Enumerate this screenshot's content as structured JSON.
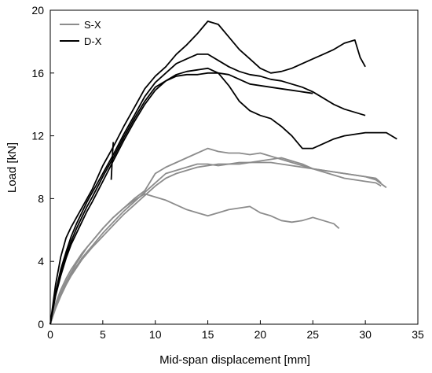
{
  "chart_data": {
    "type": "line",
    "title": "",
    "xlabel": "Mid-span displacement [mm]",
    "ylabel": "Load [kN]",
    "xlim": [
      0,
      35
    ],
    "ylim": [
      0,
      20
    ],
    "xticks": [
      0,
      5,
      10,
      15,
      20,
      25,
      30,
      35
    ],
    "yticks": [
      0,
      4,
      8,
      12,
      16,
      20
    ],
    "grid": false,
    "legend_position": "top-left",
    "legend": [
      {
        "label": "S-X",
        "color": "#8c8c8c"
      },
      {
        "label": "D-X",
        "color": "#000000"
      }
    ],
    "series": [
      {
        "group": "S-X",
        "color": "#8c8c8c",
        "x": [
          0,
          0.5,
          1,
          1.5,
          2,
          2.5,
          3,
          3.5,
          4,
          5,
          6,
          7,
          8,
          9,
          10,
          11,
          12,
          13,
          14,
          15,
          16,
          17,
          18,
          19,
          20,
          21,
          22,
          23,
          24,
          25,
          26,
          27,
          28,
          29,
          30,
          31,
          31.5
        ],
        "y": [
          0,
          1.2,
          2.0,
          2.7,
          3.3,
          3.9,
          4.4,
          4.9,
          5.3,
          6.1,
          6.8,
          7.4,
          8.0,
          8.5,
          9.6,
          10.0,
          10.3,
          10.6,
          10.9,
          11.2,
          11.0,
          10.9,
          10.9,
          10.8,
          10.9,
          10.7,
          10.5,
          10.3,
          10.1,
          9.9,
          9.8,
          9.7,
          9.6,
          9.5,
          9.4,
          9.3,
          9.0
        ]
      },
      {
        "group": "S-X",
        "color": "#8c8c8c",
        "x": [
          0,
          0.5,
          1,
          1.5,
          2,
          2.5,
          3,
          3.5,
          4,
          5,
          6,
          7,
          8,
          9,
          10,
          11,
          12,
          13,
          14,
          15,
          16,
          17,
          18,
          19,
          20,
          21,
          22,
          23,
          24,
          25,
          26,
          27,
          28,
          29,
          30,
          31,
          31.5
        ],
        "y": [
          0,
          1.1,
          1.9,
          2.6,
          3.2,
          3.7,
          4.2,
          4.6,
          5.0,
          5.8,
          6.5,
          7.2,
          7.8,
          8.4,
          9.0,
          9.6,
          9.8,
          10.0,
          10.2,
          10.2,
          10.1,
          10.2,
          10.3,
          10.3,
          10.4,
          10.5,
          10.6,
          10.4,
          10.2,
          9.9,
          9.7,
          9.5,
          9.3,
          9.2,
          9.1,
          9.0,
          8.8
        ]
      },
      {
        "group": "S-X",
        "color": "#8c8c8c",
        "x": [
          0,
          0.5,
          1,
          1.5,
          2,
          2.5,
          3,
          3.5,
          4,
          5,
          6,
          7,
          8,
          9,
          10,
          11,
          12,
          13,
          14,
          15,
          16,
          17,
          18,
          19,
          20,
          21,
          22,
          23,
          24,
          25,
          26,
          27,
          28,
          29,
          30,
          31,
          32
        ],
        "y": [
          0,
          1.0,
          1.8,
          2.5,
          3.1,
          3.6,
          4.1,
          4.5,
          4.9,
          5.6,
          6.3,
          7.0,
          7.6,
          8.2,
          8.8,
          9.3,
          9.6,
          9.8,
          10.0,
          10.1,
          10.2,
          10.2,
          10.2,
          10.3,
          10.3,
          10.3,
          10.2,
          10.1,
          10.0,
          9.9,
          9.8,
          9.7,
          9.6,
          9.5,
          9.4,
          9.2,
          8.7
        ]
      },
      {
        "group": "S-X",
        "color": "#8c8c8c",
        "x": [
          0,
          0.5,
          1,
          1.5,
          2,
          2.5,
          3,
          3.5,
          4,
          5,
          6,
          7,
          8,
          9,
          10,
          11,
          12,
          13,
          14,
          15,
          16,
          17,
          18,
          19,
          20,
          21,
          22,
          23,
          24,
          25,
          26,
          27,
          27.5
        ],
        "y": [
          0,
          1.3,
          2.2,
          2.9,
          3.5,
          4.0,
          4.5,
          4.9,
          5.3,
          6.1,
          6.8,
          7.4,
          7.9,
          8.3,
          8.1,
          7.9,
          7.6,
          7.3,
          7.1,
          6.9,
          7.1,
          7.3,
          7.4,
          7.5,
          7.1,
          6.9,
          6.6,
          6.5,
          6.6,
          6.8,
          6.6,
          6.4,
          6.1
        ]
      },
      {
        "group": "D-X",
        "color": "#000000",
        "x": [
          0,
          0.5,
          1,
          1.5,
          2,
          2.5,
          3,
          3.5,
          4,
          5,
          6,
          7,
          8,
          9,
          10,
          11,
          12,
          13,
          14,
          15,
          16,
          17,
          18,
          19,
          20,
          21,
          22,
          23,
          24,
          25,
          26,
          27,
          28,
          29,
          29.5,
          30
        ],
        "y": [
          0,
          2.5,
          4.3,
          5.5,
          6.2,
          6.8,
          7.4,
          8.0,
          8.6,
          10.1,
          11.3,
          12.6,
          13.8,
          15.0,
          15.8,
          16.4,
          17.2,
          17.8,
          18.5,
          19.3,
          19.1,
          18.3,
          17.5,
          16.9,
          16.3,
          16.0,
          16.1,
          16.3,
          16.6,
          16.9,
          17.2,
          17.5,
          17.9,
          18.1,
          17.0,
          16.4
        ]
      },
      {
        "group": "D-X",
        "color": "#000000",
        "x": [
          0,
          0.5,
          1,
          1.5,
          2,
          2.5,
          3,
          3.5,
          4,
          5,
          6,
          7,
          8,
          9,
          10,
          11,
          12,
          13,
          14,
          15,
          16,
          17,
          18,
          19,
          20,
          21,
          22,
          23,
          24,
          25,
          26,
          27,
          28,
          29,
          30
        ],
        "y": [
          0,
          2.0,
          3.5,
          4.6,
          5.6,
          6.4,
          7.1,
          7.8,
          8.4,
          9.6,
          10.8,
          12.1,
          13.3,
          14.5,
          15.4,
          16.0,
          16.6,
          16.9,
          17.2,
          17.2,
          16.8,
          16.4,
          16.1,
          15.9,
          15.8,
          15.6,
          15.5,
          15.3,
          15.1,
          14.8,
          14.4,
          14.0,
          13.7,
          13.5,
          13.3
        ]
      },
      {
        "group": "D-X",
        "color": "#000000",
        "x": [
          0,
          0.5,
          1,
          1.5,
          2,
          2.5,
          3,
          3.5,
          4,
          5,
          5.5,
          6,
          7,
          8,
          9,
          10,
          11,
          12,
          13,
          14,
          15,
          16,
          17,
          18,
          19,
          20,
          21,
          22,
          23,
          24,
          25,
          26,
          27,
          28,
          29,
          30,
          31,
          32,
          33
        ],
        "y": [
          0,
          1.9,
          3.3,
          4.4,
          5.3,
          6.1,
          6.8,
          7.5,
          8.1,
          9.4,
          10.0,
          10.6,
          11.9,
          13.1,
          14.2,
          15.1,
          15.5,
          15.9,
          16.1,
          16.2,
          16.3,
          16.0,
          15.2,
          14.2,
          13.6,
          13.3,
          13.1,
          12.6,
          12.0,
          11.2,
          11.2,
          11.5,
          11.8,
          12.0,
          12.1,
          12.2,
          12.2,
          12.2,
          11.8
        ]
      },
      {
        "group": "D-X",
        "color": "#000000",
        "x": [
          0,
          0.5,
          1,
          1.5,
          2,
          2.5,
          3,
          3.5,
          4,
          5,
          6,
          7,
          8,
          9,
          10,
          11,
          12,
          13,
          14,
          15,
          16,
          17,
          18,
          19,
          20,
          21,
          22,
          23,
          24,
          25
        ],
        "y": [
          0,
          1.8,
          3.1,
          4.2,
          5.1,
          5.8,
          6.5,
          7.2,
          7.8,
          9.1,
          10.4,
          11.7,
          12.9,
          14.0,
          14.9,
          15.5,
          15.8,
          15.9,
          15.9,
          16.0,
          16.0,
          15.9,
          15.6,
          15.3,
          15.2,
          15.1,
          15.0,
          14.9,
          14.8,
          14.7
        ]
      },
      {
        "group": "D-X",
        "color": "#000000",
        "x": [
          5.8,
          5.9,
          6.0
        ],
        "y": [
          9.2,
          10.5,
          11.6
        ]
      }
    ]
  }
}
